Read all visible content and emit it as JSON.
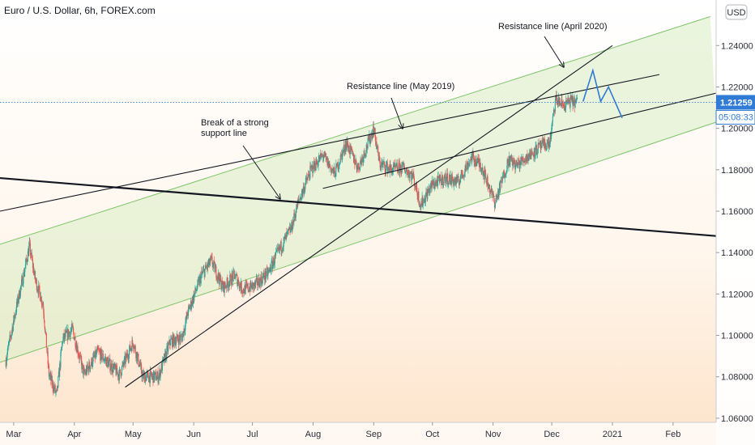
{
  "header": {
    "title": "Euro / U.S. Dollar, 6h, FOREX.com",
    "currency_button": "USD"
  },
  "price_tags": {
    "last_price": "1.21259",
    "countdown": "05:08:33"
  },
  "annotations": {
    "break_line_1": "Break of a strong",
    "break_line_2": "support line",
    "resistance_may_2019": "Resistance line (May 2019)",
    "resistance_april_2020": "Resistance line (April 2020)"
  },
  "colors": {
    "bull_candle": "#26a69a",
    "bear_candle": "#ef5350",
    "channel_fill": "#d8ecc4",
    "channel_edge": "#7fc46c",
    "projection": "#2f7bd6",
    "price_tag": "#2f7bd6",
    "last_price_line": "#2f7bd6",
    "trendline": "#131722"
  },
  "chart_data": {
    "type": "candlestick",
    "title": "Euro / U.S. Dollar, 6h, FOREX.com",
    "xlabel": "",
    "ylabel": "",
    "x_ticks": [
      "Mar",
      "Apr",
      "May",
      "Jun",
      "Jul",
      "Aug",
      "Sep",
      "Oct",
      "Nov",
      "Dec",
      "2021",
      "Feb"
    ],
    "y_ticks": [
      "1.06000",
      "1.08000",
      "1.10000",
      "1.12000",
      "1.14000",
      "1.16000",
      "1.18000",
      "1.20000",
      "1.22000",
      "1.24000"
    ],
    "ylim": [
      1.058,
      1.262
    ],
    "xlim": [
      "2020-02-23",
      "2021-02-23"
    ],
    "last_price": 1.21259,
    "grid": false,
    "series": [
      {
        "name": "price (approx. daily closes, 6h candles)",
        "points": [
          [
            "2020-02-26",
            1.088
          ],
          [
            "2020-03-02",
            1.112
          ],
          [
            "2020-03-06",
            1.129
          ],
          [
            "2020-03-09",
            1.143
          ],
          [
            "2020-03-12",
            1.127
          ],
          [
            "2020-03-16",
            1.115
          ],
          [
            "2020-03-19",
            1.081
          ],
          [
            "2020-03-23",
            1.071
          ],
          [
            "2020-03-26",
            1.098
          ],
          [
            "2020-03-31",
            1.103
          ],
          [
            "2020-04-06",
            1.081
          ],
          [
            "2020-04-13",
            1.092
          ],
          [
            "2020-04-20",
            1.085
          ],
          [
            "2020-04-24",
            1.081
          ],
          [
            "2020-05-01",
            1.097
          ],
          [
            "2020-05-06",
            1.08
          ],
          [
            "2020-05-14",
            1.08
          ],
          [
            "2020-05-20",
            1.097
          ],
          [
            "2020-05-26",
            1.099
          ],
          [
            "2020-05-29",
            1.111
          ],
          [
            "2020-06-05",
            1.129
          ],
          [
            "2020-06-10",
            1.136
          ],
          [
            "2020-06-16",
            1.123
          ],
          [
            "2020-06-22",
            1.129
          ],
          [
            "2020-06-26",
            1.122
          ],
          [
            "2020-07-02",
            1.124
          ],
          [
            "2020-07-09",
            1.13
          ],
          [
            "2020-07-14",
            1.14
          ],
          [
            "2020-07-21",
            1.152
          ],
          [
            "2020-07-24",
            1.163
          ],
          [
            "2020-07-28",
            1.173
          ],
          [
            "2020-07-31",
            1.18
          ],
          [
            "2020-08-06",
            1.187
          ],
          [
            "2020-08-12",
            1.178
          ],
          [
            "2020-08-18",
            1.193
          ],
          [
            "2020-08-24",
            1.181
          ],
          [
            "2020-08-28",
            1.19
          ],
          [
            "2020-09-01",
            1.2
          ],
          [
            "2020-09-04",
            1.183
          ],
          [
            "2020-09-10",
            1.18
          ],
          [
            "2020-09-16",
            1.181
          ],
          [
            "2020-09-21",
            1.177
          ],
          [
            "2020-09-25",
            1.163
          ],
          [
            "2020-10-01",
            1.173
          ],
          [
            "2020-10-08",
            1.176
          ],
          [
            "2020-10-14",
            1.174
          ],
          [
            "2020-10-21",
            1.186
          ],
          [
            "2020-10-26",
            1.182
          ],
          [
            "2020-11-02",
            1.164
          ],
          [
            "2020-11-09",
            1.185
          ],
          [
            "2020-11-13",
            1.182
          ],
          [
            "2020-11-18",
            1.186
          ],
          [
            "2020-11-25",
            1.191
          ],
          [
            "2020-11-30",
            1.193
          ],
          [
            "2020-12-03",
            1.214
          ],
          [
            "2020-12-07",
            1.211
          ],
          [
            "2020-12-10",
            1.213
          ],
          [
            "2020-12-14",
            1.2126
          ]
        ]
      }
    ],
    "overlays": [
      {
        "name": "ascending channel",
        "upper": [
          [
            "2020-02-23",
            1.144
          ],
          [
            "2021-02-20",
            1.254
          ]
        ],
        "lower": [
          [
            "2020-02-23",
            1.087
          ],
          [
            "2021-02-23",
            1.203
          ]
        ]
      },
      {
        "name": "Resistance line (May 2019)",
        "points": [
          [
            "2020-02-23",
            1.16
          ],
          [
            "2021-01-25",
            1.226
          ]
        ]
      },
      {
        "name": "long-term support line",
        "points": [
          [
            "2020-02-23",
            1.176
          ],
          [
            "2021-02-23",
            1.148
          ]
        ]
      },
      {
        "name": "Resistance line (April 2020)",
        "points": [
          [
            "2020-04-27",
            1.075
          ],
          [
            "2021-01-01",
            1.24
          ]
        ]
      },
      {
        "name": "support line",
        "points": [
          [
            "2020-08-06",
            1.171
          ],
          [
            "2021-02-23",
            1.217
          ]
        ]
      },
      {
        "name": "projection",
        "points": [
          [
            "2020-12-17",
            1.213
          ],
          [
            "2020-12-22",
            1.228
          ],
          [
            "2020-12-26",
            1.213
          ],
          [
            "2020-12-30",
            1.22
          ],
          [
            "2021-01-06",
            1.205
          ]
        ]
      }
    ]
  }
}
